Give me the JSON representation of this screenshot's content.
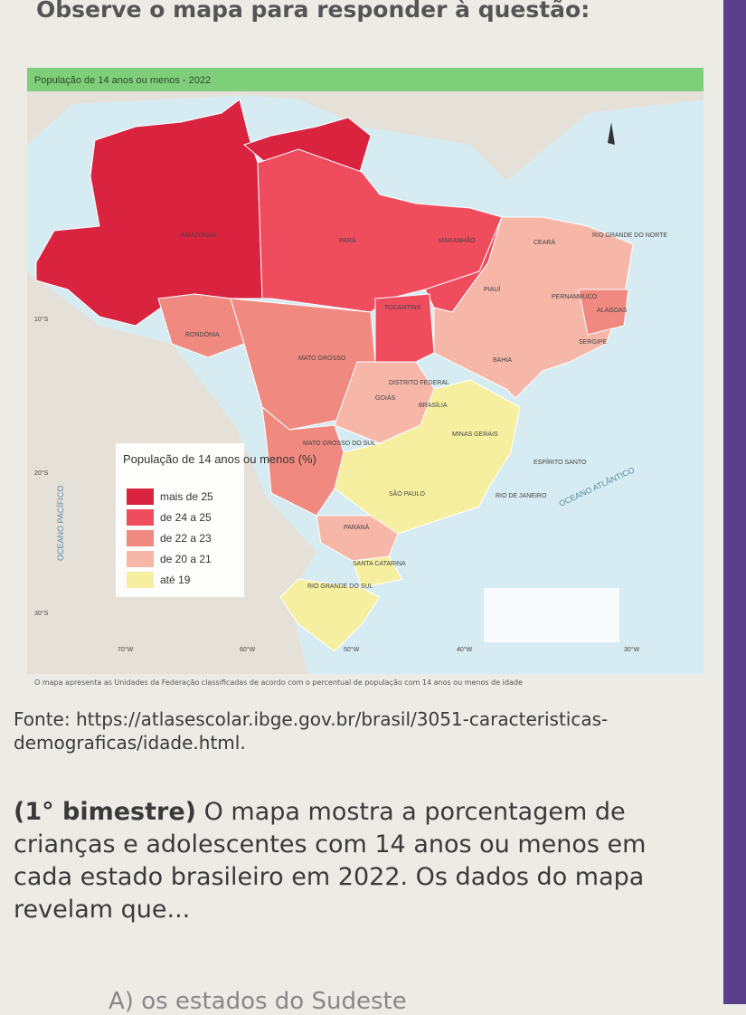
{
  "header": {
    "text": "Observe o mapa para responder à questão:"
  },
  "map": {
    "title": "População de 14 anos ou menos - 2022",
    "legend": {
      "title": "População de 14 anos ou menos (%)",
      "items": [
        "mais de 25",
        "de 24 a 25",
        "de 22 a 23",
        "de 20 a 21",
        "até 19"
      ]
    },
    "states": [
      "AMAZONAS",
      "PARÁ",
      "MARANHÃO",
      "CEARÁ",
      "RIO GRANDE DO NORTE",
      "PIAUÍ",
      "PERNAMBUCO",
      "ALAGOAS",
      "SERGIPE",
      "BAHIA",
      "TOCANTINS",
      "RONDÔNIA",
      "MATO GROSSO",
      "DISTRITO FEDERAL",
      "BRASÍLIA",
      "GOIÁS",
      "MINAS GERAIS",
      "MATO GROSSO DO SUL",
      "ESPÍRITO SANTO",
      "SÃO PAULO",
      "RIO DE JANEIRO",
      "PARANÁ",
      "SANTA CATARINA",
      "RIO GRANDE DO SUL"
    ],
    "longitudes": [
      "70°W",
      "60°W",
      "50°W",
      "40°W",
      "30°W"
    ],
    "latitudes": [
      "10°S",
      "20°S",
      "30°S"
    ],
    "oceans": [
      "OCEANO PACÍFICO",
      "OCEANO ATLÂNTICO"
    ],
    "caption": "O mapa apresenta as Unidades da Federação classificadas de acordo com o percentual de população com 14 anos ou menos de idade"
  },
  "source": "Fonte: https://atlasescolar.ibge.gov.br/brasil/3051-caracteristicas-demograficas/idade.html.",
  "question": {
    "label": "(1° bimestre)",
    "text": " O mapa mostra a porcentagem de crianças e adolescentes com 14 anos ou menos em cada estado brasileiro em 2022. Os dados do mapa revelam que..."
  },
  "option": "A) os estados do Sudeste"
}
